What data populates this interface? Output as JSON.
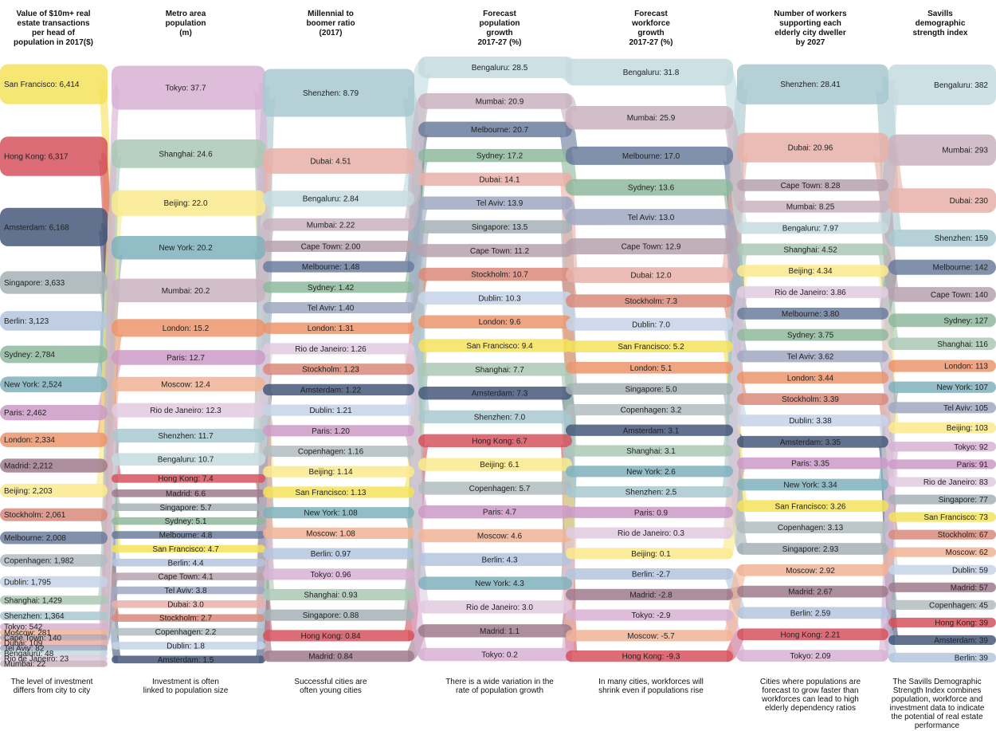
{
  "chart_data": {
    "type": "alluvial",
    "columns": [
      {
        "key": "v",
        "header": "Value of $10m+ real\nestate transactions\nper head of\npopulation in 2017($)",
        "footer": "The level of investment\ndiffers from city to city"
      },
      {
        "key": "p",
        "header": "Metro area\npopulation\n(m)",
        "footer": "Investment is often\nlinked to population size"
      },
      {
        "key": "r",
        "header": "Millennial to\nboomer ratio\n(2017)",
        "footer": "Successful cities are\noften young cities"
      },
      {
        "key": "g",
        "header": "Forecast\npopulation\ngrowth\n2017-27 (%)",
        "footer": "There is a wide variation in the\nrate of population growth"
      },
      {
        "key": "w",
        "header": "Forecast\nworkforce\ngrowth\n2017-27 (%)",
        "footer": "In many cities, workforces will\nshrink even if populations rise"
      },
      {
        "key": "s",
        "header": "Number of workers\nsupporting each\nelderly city dweller\nby 2027",
        "footer": "Cities where populations are\nforecast to grow faster than\nworkforces can lead to high\nelderly dependency ratios"
      },
      {
        "key": "d",
        "header": "Savills\ndemographic\nstrength index",
        "footer": "The Savills Demographic\nStrength Index combines\npopulation, workforce and\ninvestment data to indicate\nthe potential of real estate\nperformance"
      }
    ],
    "cities": [
      {
        "name": "San Francisco",
        "color": "#f4e25a",
        "v": "6,414",
        "p": "4.7",
        "r": "1.13",
        "g": "9.4",
        "w": "5.2",
        "s": "3.26",
        "d": "73"
      },
      {
        "name": "Hong Kong",
        "color": "#d6525e",
        "v": "6,317",
        "p": "7.4",
        "r": "0.84",
        "g": "6.7",
        "w": "-9.3",
        "s": "2.21",
        "d": "39"
      },
      {
        "name": "Amsterdam",
        "color": "#47587a",
        "v": "6,168",
        "p": "1.5",
        "r": "1.22",
        "g": "7.3",
        "w": "3.1",
        "s": "3.35",
        "d": "39"
      },
      {
        "name": "Singapore",
        "color": "#a6b2b6",
        "v": "3,633",
        "p": "5.7",
        "r": "0.88",
        "g": "13.5",
        "w": "5.0",
        "s": "2.93",
        "d": "77"
      },
      {
        "name": "Berlin",
        "color": "#b4c6de",
        "v": "3,123",
        "p": "4.4",
        "r": "0.97",
        "g": "4.3",
        "w": "-2.7",
        "s": "2.59",
        "d": "39"
      },
      {
        "name": "Sydney",
        "color": "#8fb99d",
        "v": "2,784",
        "p": "5.1",
        "r": "1.42",
        "g": "17.2",
        "w": "13.6",
        "s": "3.75",
        "d": "127"
      },
      {
        "name": "New York",
        "color": "#7fb1bd",
        "v": "2,524",
        "p": "20.2",
        "r": "1.08",
        "g": "4.3",
        "w": "2.6",
        "s": "3.34",
        "d": "107"
      },
      {
        "name": "Paris",
        "color": "#cc9ac8",
        "v": "2,462",
        "p": "12.7",
        "r": "1.20",
        "g": "4.7",
        "w": "0.9",
        "s": "3.35",
        "d": "91"
      },
      {
        "name": "London",
        "color": "#ec946c",
        "v": "2,334",
        "p": "15.2",
        "r": "1.31",
        "g": "9.6",
        "w": "5.1",
        "s": "3.44",
        "d": "113"
      },
      {
        "name": "Madrid",
        "color": "#9f7a8c",
        "v": "2,212",
        "p": "6.6",
        "r": "0.84",
        "g": "1.1",
        "w": "-2.8",
        "s": "2.67",
        "d": "57"
      },
      {
        "name": "Beijing",
        "color": "#faea8c",
        "v": "2,203",
        "p": "22.0",
        "r": "1.14",
        "g": "6.1",
        "w": "0.1",
        "s": "4.34",
        "d": "103"
      },
      {
        "name": "Stockholm",
        "color": "#d9897a",
        "v": "2,061",
        "p": "2.7",
        "r": "1.23",
        "g": "10.7",
        "w": "7.3",
        "s": "3.39",
        "d": "67"
      },
      {
        "name": "Melbourne",
        "color": "#6b7c9c",
        "v": "2,008",
        "p": "4.8",
        "r": "1.48",
        "g": "20.7",
        "w": "17.0",
        "s": "3.80",
        "d": "142"
      },
      {
        "name": "Copenhagen",
        "color": "#b2bcbf",
        "v": "1,982",
        "p": "2.2",
        "r": "1.16",
        "g": "5.7",
        "w": "3.2",
        "s": "3.13",
        "d": "45"
      },
      {
        "name": "Dublin",
        "color": "#c5d3e8",
        "v": "1,795",
        "p": "1.8",
        "r": "1.21",
        "g": "10.3",
        "w": "7.0",
        "s": "3.38",
        "d": "59"
      },
      {
        "name": "Shanghai",
        "color": "#aac8b5",
        "v": "1,429",
        "p": "24.6",
        "r": "0.93",
        "g": "7.7",
        "w": "3.1",
        "s": "4.52",
        "d": "116"
      },
      {
        "name": "Shenzhen",
        "color": "#a8c8cf",
        "v": "1,364",
        "p": "11.7",
        "r": "8.79",
        "g": "7.0",
        "w": "2.5",
        "s": "28.41",
        "d": "159"
      },
      {
        "name": "Tokyo",
        "color": "#d7b1d3",
        "v": "542",
        "p": "37.7",
        "r": "0.96",
        "g": "0.2",
        "w": "-2.9",
        "s": "2.09",
        "d": "92"
      },
      {
        "name": "Moscow",
        "color": "#f0b496",
        "v": "281",
        "p": "12.4",
        "r": "1.08",
        "g": "4.6",
        "w": "-5.7",
        "s": "2.92",
        "d": "62"
      },
      {
        "name": "Cape Town",
        "color": "#b6a2ad",
        "v": "140",
        "p": "4.1",
        "r": "2.00",
        "g": "11.2",
        "w": "12.9",
        "s": "8.28",
        "d": "140"
      },
      {
        "name": "Dubai",
        "color": "#e8b0a8",
        "v": "109",
        "p": "3.0",
        "r": "4.51",
        "g": "14.1",
        "w": "12.0",
        "s": "20.96",
        "d": "230"
      },
      {
        "name": "Tel Aviv",
        "color": "#a0a8c2",
        "v": "82",
        "p": "3.8",
        "r": "1.40",
        "g": "13.9",
        "w": "13.0",
        "s": "3.62",
        "d": "105"
      },
      {
        "name": "Bengaluru",
        "color": "#c4dbdf",
        "v": "48",
        "p": "10.7",
        "r": "2.84",
        "g": "28.5",
        "w": "31.8",
        "s": "7.97",
        "d": "382"
      },
      {
        "name": "Rio de Janeiro",
        "color": "#e0cbe0",
        "v": "23",
        "p": "12.3",
        "r": "1.26",
        "g": "3.0",
        "w": "0.3",
        "s": "3.86",
        "d": "83"
      },
      {
        "name": "Mumbai",
        "color": "#c9b3c0",
        "v": "22",
        "p": "20.2",
        "r": "2.22",
        "g": "20.9",
        "w": "25.9",
        "s": "8.25",
        "d": "293"
      }
    ]
  }
}
